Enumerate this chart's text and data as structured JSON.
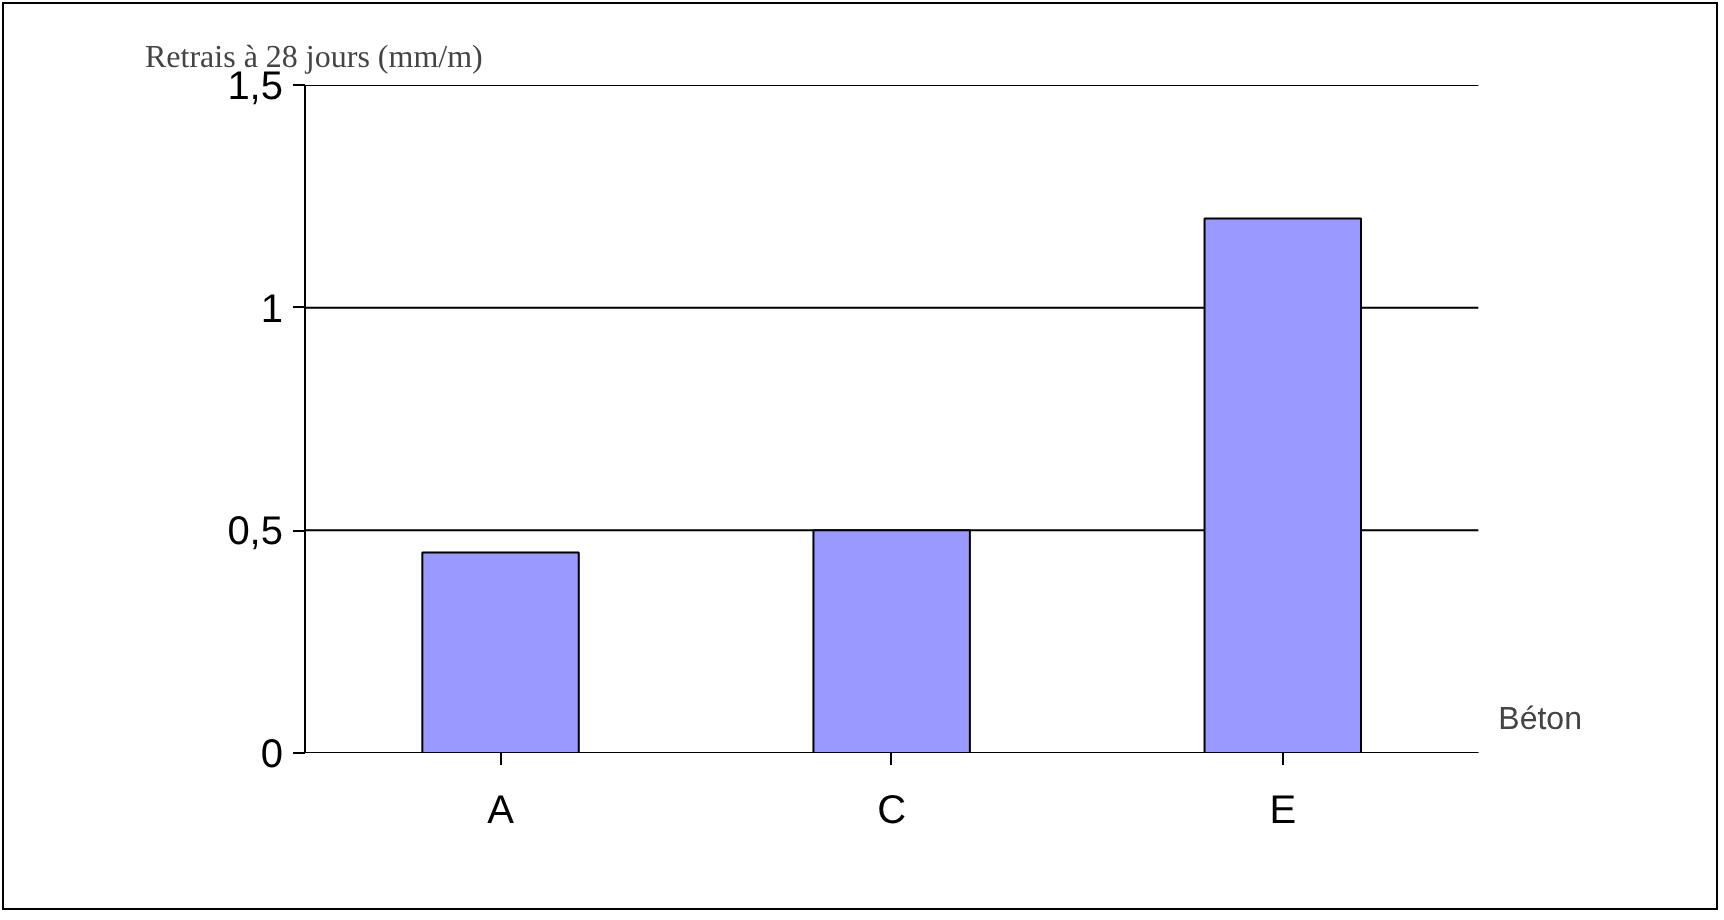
{
  "chart_data": {
    "type": "bar",
    "ylabel": "Retrais à 28 jours (mm/m)",
    "xlabel": "Béton",
    "categories": [
      "A",
      "C",
      "E"
    ],
    "values": [
      0.45,
      0.5,
      1.2
    ],
    "color": "#9999ff",
    "ylim": [
      0,
      1.5
    ],
    "yticks": [
      {
        "value": 0,
        "label": "0"
      },
      {
        "value": 0.5,
        "label": "0,5"
      },
      {
        "value": 1,
        "label": "1"
      },
      {
        "value": 1.5,
        "label": "1,5"
      }
    ],
    "grid": "y"
  }
}
